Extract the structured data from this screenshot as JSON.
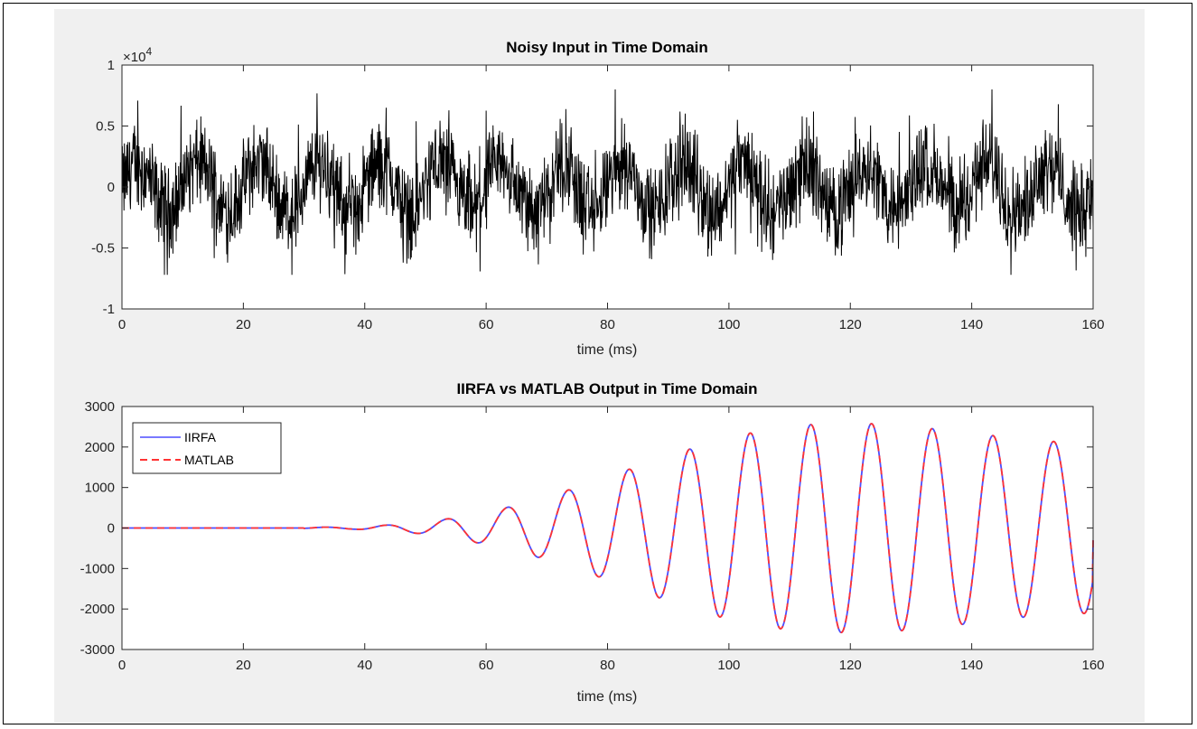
{
  "chart_data": [
    {
      "type": "line",
      "title": "Noisy Input in Time Domain",
      "xlabel": "time (ms)",
      "ylabel": "",
      "exponent_label": "×10",
      "exponent_power": "4",
      "xlim": [
        0,
        160
      ],
      "ylim": [
        -1,
        1
      ],
      "x_ticks": [
        "0",
        "20",
        "40",
        "60",
        "80",
        "100",
        "120",
        "140",
        "160"
      ],
      "y_ticks": [
        "1",
        "0.5",
        "0",
        "-0.5",
        "-1"
      ],
      "signal": {
        "kind": "noisy periodic signal",
        "period_ms": 10,
        "sine_amplitude": 0.2,
        "noise_envelope": [
          -0.72,
          0.8
        ],
        "color": "#000000"
      },
      "grid": false
    },
    {
      "type": "line",
      "title": "IIRFA vs MATLAB Output in Time Domain",
      "xlabel": "time (ms)",
      "ylabel": "",
      "xlim": [
        0,
        160
      ],
      "ylim": [
        -3000,
        3000
      ],
      "x_ticks": [
        "0",
        "20",
        "40",
        "60",
        "80",
        "100",
        "120",
        "140",
        "160"
      ],
      "y_ticks": [
        "3000",
        "2000",
        "1000",
        "0",
        "-1000",
        "-2000",
        "-3000"
      ],
      "series": [
        {
          "name": "IIRFA",
          "color": "#4d4dff",
          "style": "solid"
        },
        {
          "name": "MATLAB",
          "color": "#ff3333",
          "style": "dashed"
        }
      ],
      "period_ms": 10,
      "peaks": [
        {
          "x": 33.5,
          "y": 20
        },
        {
          "x": 38.5,
          "y": -30
        },
        {
          "x": 43.5,
          "y": 70
        },
        {
          "x": 48.5,
          "y": -130
        },
        {
          "x": 53,
          "y": 210
        },
        {
          "x": 58,
          "y": -350
        },
        {
          "x": 63,
          "y": 490
        },
        {
          "x": 68,
          "y": -700
        },
        {
          "x": 73,
          "y": 910
        },
        {
          "x": 78,
          "y": -1180
        },
        {
          "x": 83,
          "y": 1420
        },
        {
          "x": 88,
          "y": -1700
        },
        {
          "x": 93,
          "y": 1920
        },
        {
          "x": 98,
          "y": -2180
        },
        {
          "x": 103,
          "y": 2330
        },
        {
          "x": 108,
          "y": -2480
        },
        {
          "x": 113,
          "y": 2550
        },
        {
          "x": 118,
          "y": -2580
        },
        {
          "x": 123,
          "y": 2580
        },
        {
          "x": 128,
          "y": -2540
        },
        {
          "x": 133,
          "y": 2460
        },
        {
          "x": 138,
          "y": -2390
        },
        {
          "x": 143,
          "y": 2290
        },
        {
          "x": 148,
          "y": -2210
        },
        {
          "x": 153,
          "y": 2140
        },
        {
          "x": 158,
          "y": -2110
        }
      ],
      "end_point": {
        "x": 160,
        "y": -300
      },
      "legend_position": "top-left",
      "grid": false
    }
  ]
}
